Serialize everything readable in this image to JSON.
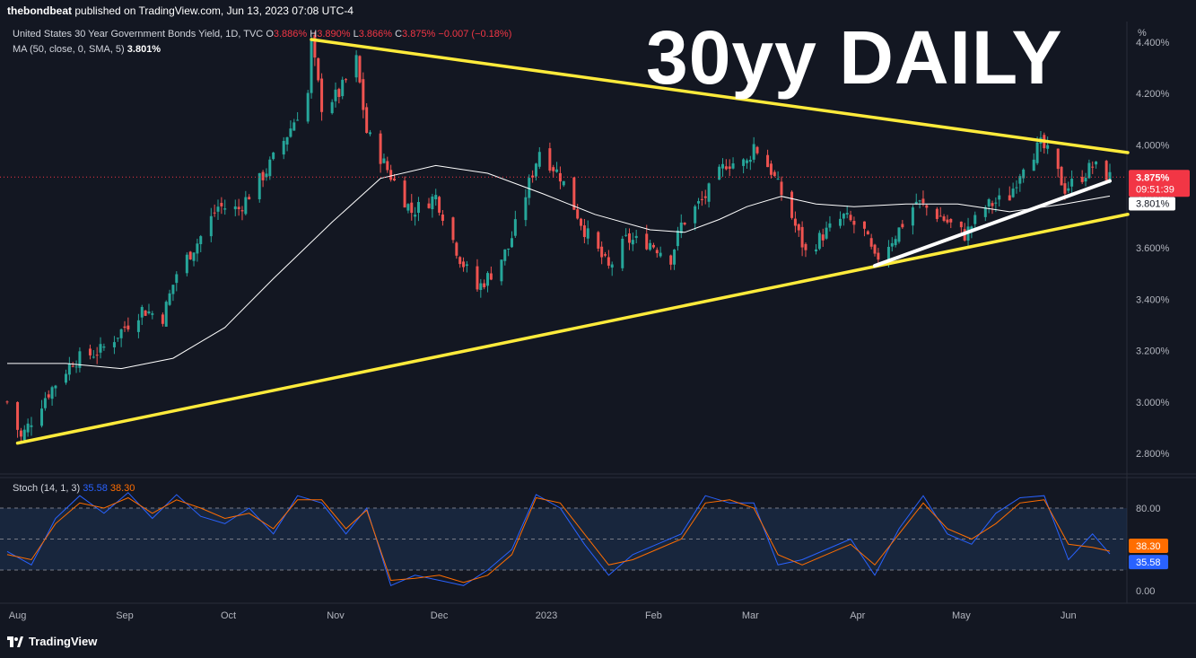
{
  "header": {
    "publisher": "thebondbeat",
    "published_text": "published on TradingView.com, Jun 13, 2023 07:08 UTC-4"
  },
  "legend": {
    "symbol": "United States 30 Year Government Bonds Yield, 1D, TVC",
    "o_label": "O",
    "o_value": "3.886%",
    "h_label": "H",
    "h_value": "3.890%",
    "l_label": "L",
    "l_value": "3.866%",
    "c_label": "C",
    "c_value": "3.875%",
    "change": "−0.007 (−0.18%)",
    "ma_label": "MA (50, close, 0, SMA, 5)",
    "ma_value": "3.801%"
  },
  "overlay_title": "30yy DAILY",
  "unit_label": "%",
  "price_tags": {
    "last_price": "3.875%",
    "countdown": "09:51:39",
    "ma_price": "3.801%"
  },
  "stoch_legend": {
    "label": "Stoch (14, 1, 3)",
    "k_value": "35.58",
    "d_value": "38.30"
  },
  "footer": {
    "brand": "TradingView"
  },
  "colors": {
    "background": "#131722",
    "up": "#26a69a",
    "down": "#ef5350",
    "trendline": "#ffeb3b",
    "support_line": "#ffffff",
    "ma": "#ffffff",
    "stoch_k": "#2962ff",
    "stoch_d": "#ff6d00",
    "stoch_band": "#1e3a5f"
  },
  "chart_data": [
    {
      "type": "candlestick",
      "title": "United States 30 Year Government Bonds Yield, 1D, TVC",
      "y_unit": "%",
      "ylim": [
        2.72,
        4.48
      ],
      "y_ticks": [
        "4.400%",
        "4.200%",
        "4.000%",
        "3.800%",
        "3.600%",
        "3.400%",
        "3.200%",
        "3.000%",
        "2.800%"
      ],
      "y_tick_values": [
        4.4,
        4.2,
        4.0,
        3.8,
        3.6,
        3.4,
        3.2,
        3.0,
        2.8
      ],
      "x_ticks": [
        "Aug",
        "Sep",
        "Oct",
        "Nov",
        "Dec",
        "2023",
        "Feb",
        "Mar",
        "Apr",
        "May",
        "Jun"
      ],
      "x_tick_dates": [
        "2022-08-01",
        "2022-09-01",
        "2022-10-01",
        "2022-11-01",
        "2022-12-01",
        "2023-01-01",
        "2023-02-01",
        "2023-03-01",
        "2023-04-01",
        "2023-05-01",
        "2023-06-01"
      ],
      "date_range": [
        "2022-07-29",
        "2023-06-13"
      ],
      "close_path": [
        [
          "2022-07-29",
          3.0
        ],
        [
          "2022-08-02",
          2.86
        ],
        [
          "2022-08-09",
          3.02
        ],
        [
          "2022-08-17",
          3.16
        ],
        [
          "2022-08-25",
          3.2
        ],
        [
          "2022-08-29",
          3.25
        ],
        [
          "2022-09-06",
          3.36
        ],
        [
          "2022-09-12",
          3.33
        ],
        [
          "2022-09-16",
          3.5
        ],
        [
          "2022-09-22",
          3.62
        ],
        [
          "2022-09-28",
          3.76
        ],
        [
          "2022-10-04",
          3.75
        ],
        [
          "2022-10-12",
          3.9
        ],
        [
          "2022-10-18",
          4.04
        ],
        [
          "2022-10-24",
          4.2
        ],
        [
          "2022-10-25",
          4.4
        ],
        [
          "2022-10-28",
          4.15
        ],
        [
          "2022-11-02",
          4.2
        ],
        [
          "2022-11-07",
          4.33
        ],
        [
          "2022-11-10",
          4.05
        ],
        [
          "2022-11-17",
          3.88
        ],
        [
          "2022-11-23",
          3.74
        ],
        [
          "2022-11-30",
          3.8
        ],
        [
          "2022-12-07",
          3.56
        ],
        [
          "2022-12-12",
          3.44
        ],
        [
          "2022-12-16",
          3.5
        ],
        [
          "2022-12-21",
          3.6
        ],
        [
          "2022-12-27",
          3.85
        ],
        [
          "2022-12-30",
          3.98
        ],
        [
          "2023-01-05",
          3.88
        ],
        [
          "2023-01-12",
          3.67
        ],
        [
          "2023-01-19",
          3.52
        ],
        [
          "2023-01-24",
          3.63
        ],
        [
          "2023-01-31",
          3.62
        ],
        [
          "2023-02-06",
          3.56
        ],
        [
          "2023-02-09",
          3.69
        ],
        [
          "2023-02-16",
          3.8
        ],
        [
          "2023-02-22",
          3.93
        ],
        [
          "2023-02-28",
          3.93
        ],
        [
          "2023-03-02",
          4.0
        ],
        [
          "2023-03-07",
          3.9
        ],
        [
          "2023-03-13",
          3.72
        ],
        [
          "2023-03-17",
          3.58
        ],
        [
          "2023-03-22",
          3.65
        ],
        [
          "2023-03-28",
          3.72
        ],
        [
          "2023-04-03",
          3.66
        ],
        [
          "2023-04-06",
          3.55
        ],
        [
          "2023-04-12",
          3.65
        ],
        [
          "2023-04-18",
          3.78
        ],
        [
          "2023-04-25",
          3.72
        ],
        [
          "2023-05-02",
          3.65
        ],
        [
          "2023-05-08",
          3.76
        ],
        [
          "2023-05-15",
          3.8
        ],
        [
          "2023-05-19",
          3.93
        ],
        [
          "2023-05-24",
          4.0
        ],
        [
          "2023-05-26",
          3.97
        ],
        [
          "2023-05-31",
          3.83
        ],
        [
          "2023-06-05",
          3.88
        ],
        [
          "2023-06-08",
          3.92
        ],
        [
          "2023-06-13",
          3.875
        ]
      ],
      "ma50_path": [
        [
          "2022-07-29",
          3.15
        ],
        [
          "2022-08-15",
          3.15
        ],
        [
          "2022-08-31",
          3.13
        ],
        [
          "2022-09-15",
          3.17
        ],
        [
          "2022-09-30",
          3.29
        ],
        [
          "2022-10-14",
          3.48
        ],
        [
          "2022-10-31",
          3.7
        ],
        [
          "2022-11-14",
          3.87
        ],
        [
          "2022-11-30",
          3.92
        ],
        [
          "2022-12-15",
          3.89
        ],
        [
          "2022-12-31",
          3.81
        ],
        [
          "2023-01-15",
          3.73
        ],
        [
          "2023-01-31",
          3.67
        ],
        [
          "2023-02-10",
          3.66
        ],
        [
          "2023-02-20",
          3.71
        ],
        [
          "2023-02-28",
          3.76
        ],
        [
          "2023-03-10",
          3.8
        ],
        [
          "2023-03-20",
          3.77
        ],
        [
          "2023-03-31",
          3.76
        ],
        [
          "2023-04-15",
          3.77
        ],
        [
          "2023-04-30",
          3.77
        ],
        [
          "2023-05-15",
          3.74
        ],
        [
          "2023-05-31",
          3.77
        ],
        [
          "2023-06-13",
          3.801
        ]
      ],
      "last_price": 3.875,
      "ma_value": 3.801,
      "trendlines": [
        {
          "name": "upper",
          "color": "yellow",
          "from": [
            "2022-10-25",
            4.41
          ],
          "to": [
            "2023-06-13",
            3.97
          ]
        },
        {
          "name": "lower",
          "color": "yellow",
          "from": [
            "2022-08-01",
            2.84
          ],
          "to": [
            "2023-06-13",
            3.73
          ]
        },
        {
          "name": "support",
          "color": "white",
          "from": [
            "2023-04-06",
            3.53
          ],
          "to": [
            "2023-06-13",
            3.86
          ]
        }
      ]
    },
    {
      "type": "line",
      "title": "Stoch (14, 1, 3)",
      "ylim": [
        0,
        100
      ],
      "y_ticks": [
        "80.00",
        "0.00"
      ],
      "y_tick_values": [
        80,
        0
      ],
      "band": [
        20,
        80
      ],
      "mid_level": 50,
      "series": [
        {
          "name": "%K",
          "last": 35.58,
          "color": "blue"
        },
        {
          "name": "%D",
          "last": 38.3,
          "color": "orange"
        }
      ],
      "d_path": [
        [
          "2022-07-29",
          35
        ],
        [
          "2022-08-05",
          30
        ],
        [
          "2022-08-12",
          65
        ],
        [
          "2022-08-19",
          85
        ],
        [
          "2022-08-26",
          80
        ],
        [
          "2022-09-02",
          90
        ],
        [
          "2022-09-09",
          75
        ],
        [
          "2022-09-16",
          88
        ],
        [
          "2022-09-23",
          80
        ],
        [
          "2022-09-30",
          70
        ],
        [
          "2022-10-07",
          75
        ],
        [
          "2022-10-14",
          60
        ],
        [
          "2022-10-21",
          88
        ],
        [
          "2022-10-28",
          88
        ],
        [
          "2022-11-04",
          60
        ],
        [
          "2022-11-10",
          78
        ],
        [
          "2022-11-17",
          10
        ],
        [
          "2022-11-24",
          12
        ],
        [
          "2022-12-01",
          15
        ],
        [
          "2022-12-08",
          8
        ],
        [
          "2022-12-15",
          15
        ],
        [
          "2022-12-22",
          35
        ],
        [
          "2022-12-29",
          90
        ],
        [
          "2023-01-05",
          85
        ],
        [
          "2023-01-12",
          55
        ],
        [
          "2023-01-19",
          25
        ],
        [
          "2023-01-26",
          30
        ],
        [
          "2023-02-02",
          40
        ],
        [
          "2023-02-09",
          50
        ],
        [
          "2023-02-16",
          85
        ],
        [
          "2023-02-23",
          88
        ],
        [
          "2023-03-02",
          80
        ],
        [
          "2023-03-09",
          35
        ],
        [
          "2023-03-16",
          25
        ],
        [
          "2023-03-23",
          35
        ],
        [
          "2023-03-30",
          45
        ],
        [
          "2023-04-06",
          25
        ],
        [
          "2023-04-13",
          55
        ],
        [
          "2023-04-20",
          85
        ],
        [
          "2023-04-27",
          60
        ],
        [
          "2023-05-04",
          50
        ],
        [
          "2023-05-11",
          65
        ],
        [
          "2023-05-18",
          85
        ],
        [
          "2023-05-25",
          88
        ],
        [
          "2023-06-01",
          45
        ],
        [
          "2023-06-08",
          42
        ],
        [
          "2023-06-13",
          38.3
        ]
      ],
      "k_path": [
        [
          "2022-07-29",
          38
        ],
        [
          "2022-08-05",
          25
        ],
        [
          "2022-08-12",
          70
        ],
        [
          "2022-08-19",
          92
        ],
        [
          "2022-08-26",
          75
        ],
        [
          "2022-09-02",
          95
        ],
        [
          "2022-09-09",
          70
        ],
        [
          "2022-09-16",
          93
        ],
        [
          "2022-09-23",
          72
        ],
        [
          "2022-09-30",
          65
        ],
        [
          "2022-10-07",
          80
        ],
        [
          "2022-10-14",
          55
        ],
        [
          "2022-10-21",
          92
        ],
        [
          "2022-10-28",
          85
        ],
        [
          "2022-11-04",
          55
        ],
        [
          "2022-11-10",
          80
        ],
        [
          "2022-11-17",
          5
        ],
        [
          "2022-11-24",
          15
        ],
        [
          "2022-12-01",
          10
        ],
        [
          "2022-12-08",
          5
        ],
        [
          "2022-12-15",
          20
        ],
        [
          "2022-12-22",
          40
        ],
        [
          "2022-12-29",
          93
        ],
        [
          "2023-01-05",
          80
        ],
        [
          "2023-01-12",
          45
        ],
        [
          "2023-01-19",
          15
        ],
        [
          "2023-01-26",
          35
        ],
        [
          "2023-02-02",
          45
        ],
        [
          "2023-02-09",
          55
        ],
        [
          "2023-02-16",
          92
        ],
        [
          "2023-02-23",
          85
        ],
        [
          "2023-03-02",
          85
        ],
        [
          "2023-03-09",
          25
        ],
        [
          "2023-03-16",
          30
        ],
        [
          "2023-03-23",
          40
        ],
        [
          "2023-03-30",
          50
        ],
        [
          "2023-04-06",
          15
        ],
        [
          "2023-04-13",
          60
        ],
        [
          "2023-04-20",
          92
        ],
        [
          "2023-04-27",
          55
        ],
        [
          "2023-05-04",
          45
        ],
        [
          "2023-05-11",
          75
        ],
        [
          "2023-05-18",
          90
        ],
        [
          "2023-05-25",
          92
        ],
        [
          "2023-06-01",
          30
        ],
        [
          "2023-06-08",
          55
        ],
        [
          "2023-06-13",
          35.58
        ]
      ]
    }
  ]
}
